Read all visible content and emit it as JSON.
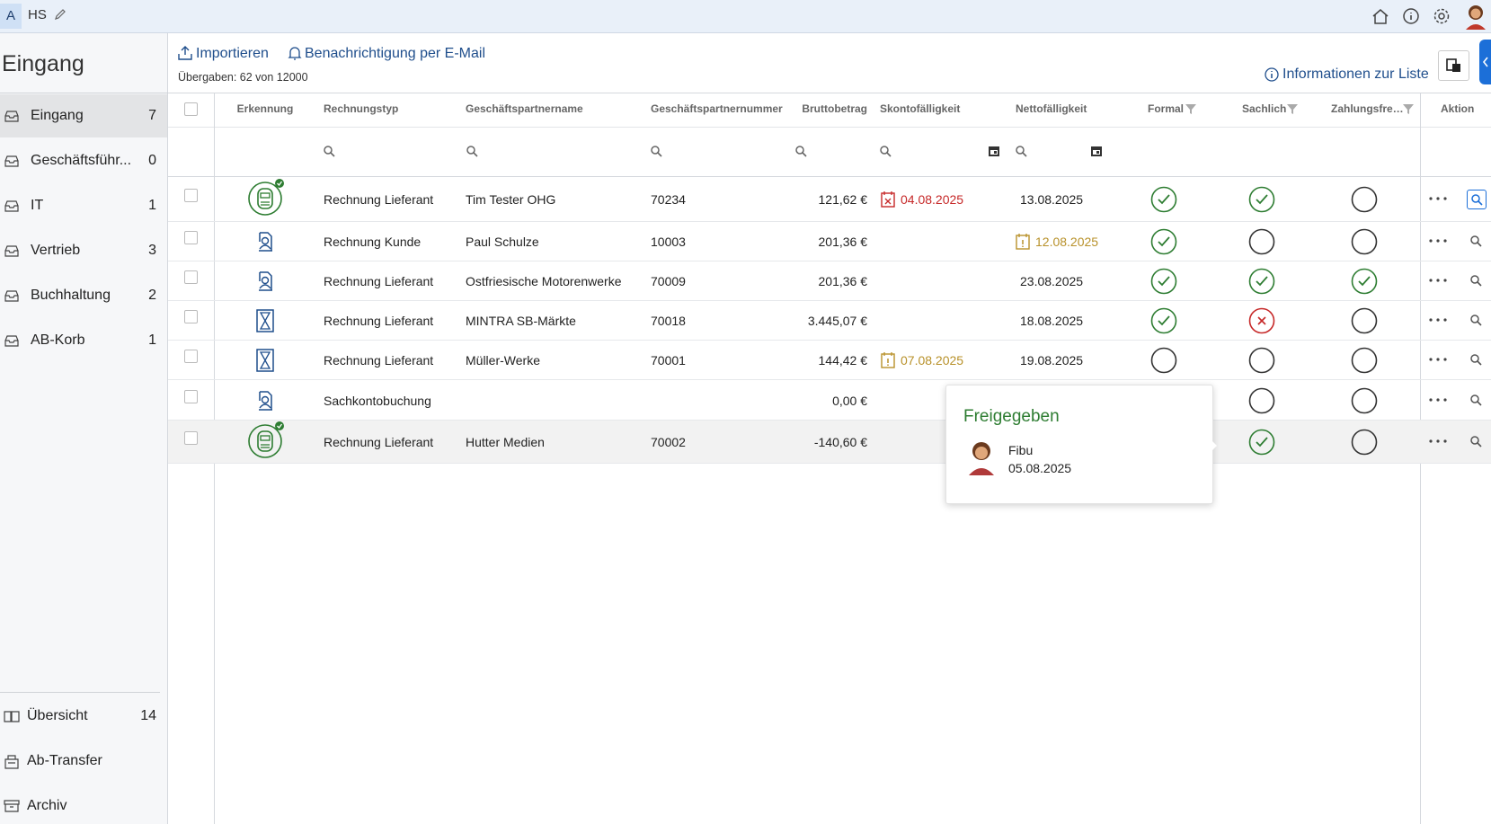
{
  "header": {
    "badge": "A",
    "user": "HS"
  },
  "sidebar": {
    "title": "Eingang",
    "items": [
      {
        "label": "Eingang",
        "count": 7
      },
      {
        "label": "Geschäftsführ...",
        "count": 0
      },
      {
        "label": "IT",
        "count": 1
      },
      {
        "label": "Vertrieb",
        "count": 3
      },
      {
        "label": "Buchhaltung",
        "count": 2
      },
      {
        "label": "AB-Korb",
        "count": 1
      }
    ],
    "bottom": [
      {
        "label": "Übersicht",
        "count": 14
      },
      {
        "label": "Ab-Transfer"
      },
      {
        "label": "Archiv"
      }
    ]
  },
  "toolbar": {
    "import": "Importieren",
    "notify": "Benachrichtigung per E-Mail",
    "info": "Übergaben: 62 von 12000",
    "list_info": "Informationen zur Liste"
  },
  "table": {
    "columns": [
      "Erkennung",
      "Rechnungstyp",
      "Geschäftspartnername",
      "Geschäftspartnernummer",
      "Bruttobetrag",
      "Skontofälligkeit",
      "Nettofälligkeit",
      "Formal",
      "Sachlich",
      "Zahlungsfre…",
      "Aktion"
    ],
    "rows": [
      [
        "Rechnung Lieferant",
        "Tim Tester OHG",
        "70234",
        "121,62 €",
        "04.08.2025",
        "13.08.2025"
      ],
      [
        "Rechnung Kunde",
        "Paul Schulze",
        "10003",
        "201,36 €",
        null,
        "12.08.2025"
      ],
      [
        "Rechnung Lieferant",
        "Ostfriesische Motorenwerke",
        "70009",
        "201,36 €",
        null,
        "23.08.2025"
      ],
      [
        "Rechnung Lieferant",
        "MINTRA SB-Märkte",
        "70018",
        "3.445,07 €",
        null,
        "18.08.2025"
      ],
      [
        "Rechnung Lieferant",
        "Müller-Werke",
        "70001",
        "144,42 €",
        "07.08.2025",
        "19.08.2025"
      ],
      [
        "Sachkontobuchung",
        null,
        null,
        "0,00 €",
        null,
        null
      ],
      [
        "Rechnung Lieferant",
        "Hutter Medien",
        "70002",
        "-140,60 €",
        null,
        null
      ]
    ]
  },
  "tooltip": {
    "title": "Freigegeben",
    "user": "Fibu",
    "date": "05.08.2025"
  }
}
